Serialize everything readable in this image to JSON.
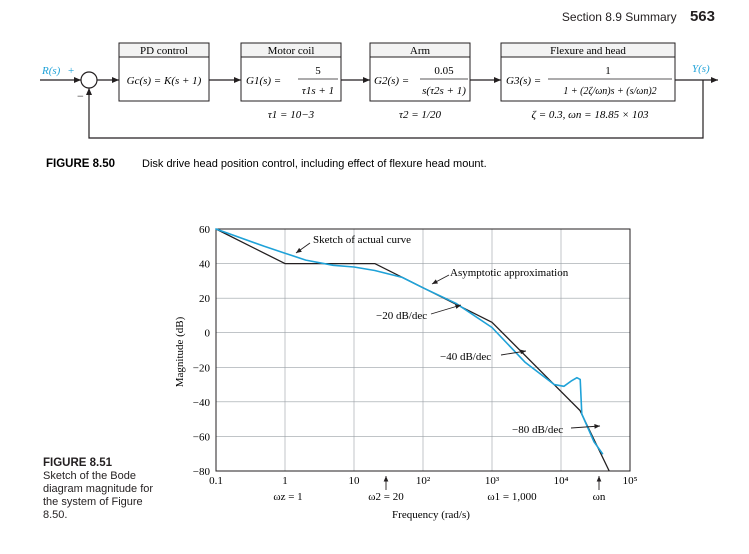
{
  "header": {
    "section": "Section 8.9  Summary",
    "page": "563"
  },
  "figure_850": {
    "input_label": "R(s)",
    "plus": "+",
    "minus": "−",
    "output_label": "Y(s)",
    "blocks": [
      {
        "title": "PD control",
        "expr": "Gc(s) = K(s + 1)"
      },
      {
        "title": "Motor coil",
        "lhs": "G1(s) =",
        "num": "5",
        "den": "τ1s + 1",
        "note": "τ1 = 10−3"
      },
      {
        "title": "Arm",
        "lhs": "G2(s) =",
        "num": "0.05",
        "den": "s(τ2s + 1)",
        "note": "τ2 = 1/20"
      },
      {
        "title": "Flexure and head",
        "lhs": "G3(s) =",
        "num": "1",
        "den": "1 + (2ζ/ωn)s + (s/ωn)2",
        "note": "ζ = 0.3, ωn = 18.85 × 103"
      }
    ],
    "caption_label": "FIGURE 8.50",
    "caption_text": "Disk drive head position control, including effect of flexure head mount."
  },
  "figure_851": {
    "caption_label": "FIGURE 8.51",
    "caption_text": "Sketch of the Bode diagram magnitude for the system of Figure 8.50.",
    "chart_data": {
      "type": "line",
      "xscale": "log",
      "xlim": [
        0.1,
        100000
      ],
      "ylim": [
        -80,
        60
      ],
      "xlabel": "Frequency (rad/s)",
      "ylabel": "Magnitude (dB)",
      "x_ticks": [
        "0.1",
        "1",
        "10",
        "10²",
        "10³",
        "10⁴",
        "10⁵"
      ],
      "y_ticks": [
        "60",
        "40",
        "20",
        "0",
        "−20",
        "−40",
        "−60",
        "−80"
      ],
      "grid": true,
      "series": [
        {
          "name": "Asymptotic approximation",
          "color": "#231f20",
          "x": [
            0.1,
            1,
            20,
            1000,
            18850,
            50000
          ],
          "y": [
            60,
            40,
            40,
            6,
            -45,
            -80
          ]
        },
        {
          "name": "Sketch of actual curve",
          "color": "#1fa2d8",
          "x": [
            0.1,
            0.5,
            1,
            2,
            5,
            10,
            20,
            50,
            100,
            300,
            1000,
            3000,
            8000,
            11000,
            14000,
            17000,
            19000,
            20000,
            30000,
            40000
          ],
          "y": [
            60,
            50,
            46,
            42,
            39,
            38,
            36,
            32,
            26,
            17,
            3,
            -17,
            -30,
            -31,
            -28,
            -26,
            -27,
            -47,
            -63,
            -70
          ]
        }
      ],
      "annotations": [
        {
          "text": "Sketch of actual curve"
        },
        {
          "text": "Asymptotic approximation"
        },
        {
          "text": "−20 dB/dec"
        },
        {
          "text": "−40 dB/dec"
        },
        {
          "text": "−80 dB/dec"
        },
        {
          "text": "ωz = 1"
        },
        {
          "text": "ω2 = 20"
        },
        {
          "text": "ω1 = 1,000"
        },
        {
          "text": "ωn"
        }
      ]
    }
  }
}
